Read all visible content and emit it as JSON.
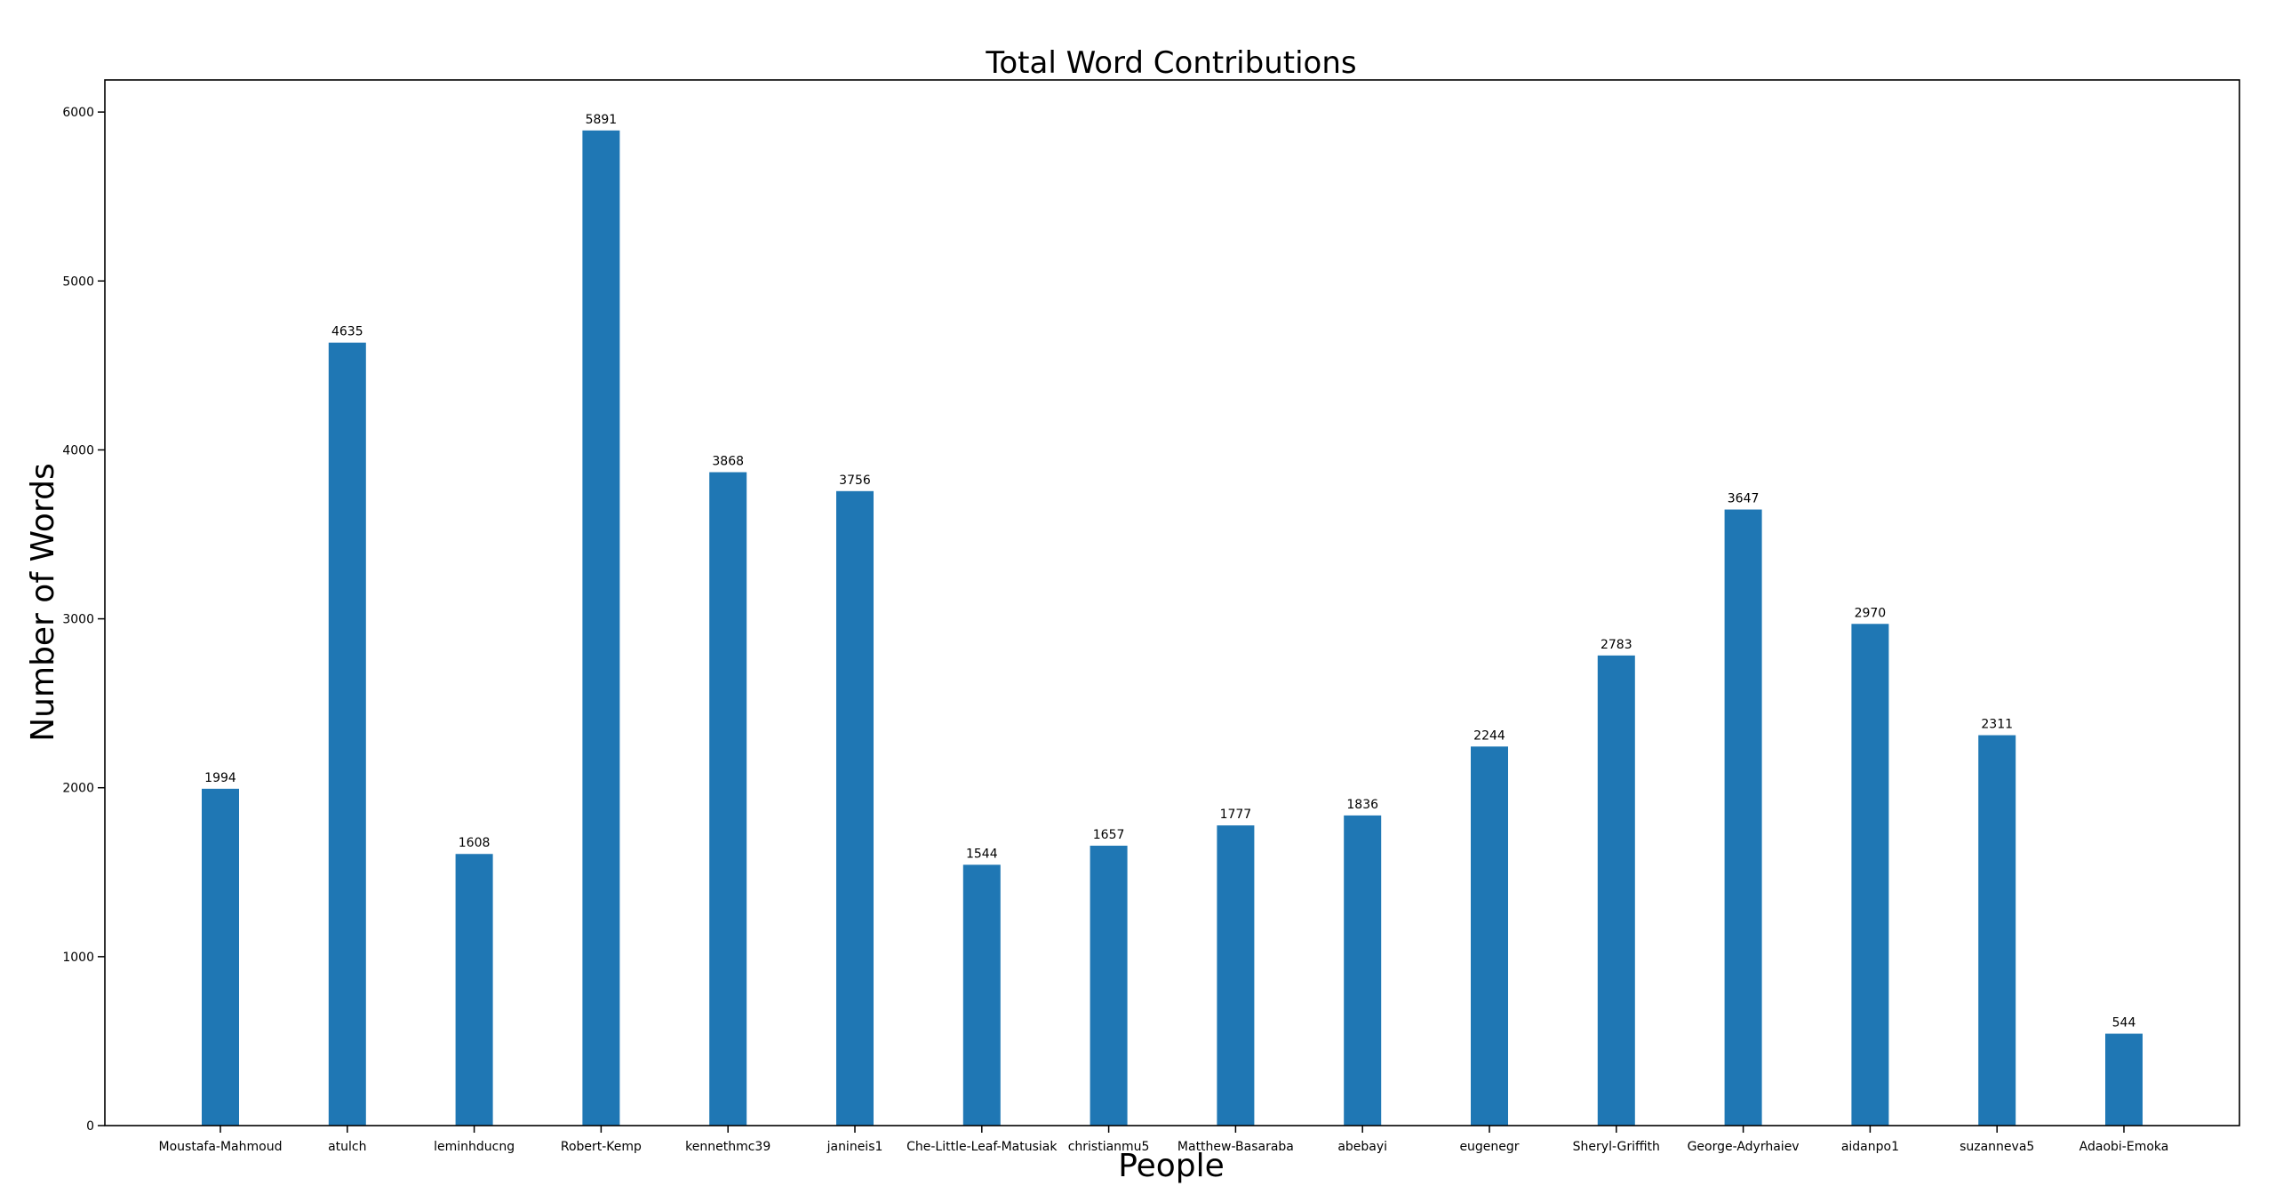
{
  "chart_data": {
    "type": "bar",
    "title": "Total Word Contributions",
    "xlabel": "People",
    "ylabel": "Number of Words",
    "categories": [
      "Moustafa-Mahmoud",
      "atulch",
      "leminhducng",
      "Robert-Kemp",
      "kennethmc39",
      "janineis1",
      "Che-Little-Leaf-Matusiak",
      "christianmu5",
      "Matthew-Basaraba",
      "abebayi",
      "eugenegr",
      "Sheryl-Griffith",
      "George-Adyrhaiev",
      "aidanpo1",
      "suzanneva5",
      "Adaobi-Emoka"
    ],
    "values": [
      1994,
      4635,
      1608,
      5891,
      3868,
      3756,
      1544,
      1657,
      1777,
      1836,
      2244,
      2783,
      3647,
      2970,
      2311,
      544
    ],
    "data_labels": [
      "1994",
      "4635",
      "1608",
      "5891",
      "3868",
      "3756",
      "1544",
      "1657",
      "1777",
      "1836",
      "2244",
      "2783",
      "3647",
      "2970",
      "2311",
      "544"
    ],
    "y_ticks": [
      0,
      1000,
      2000,
      3000,
      4000,
      5000,
      6000
    ],
    "y_tick_labels": [
      "0",
      "1000",
      "2000",
      "3000",
      "4000",
      "5000",
      "6000"
    ],
    "ylim": [
      0,
      6190
    ],
    "grid": false,
    "bar_color": "#1f77b4"
  }
}
